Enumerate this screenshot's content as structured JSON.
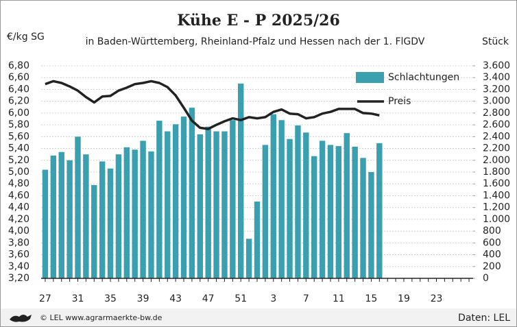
{
  "chart_data": {
    "type": "bar_line",
    "title": "Kühe E - P 2025/26",
    "subtitle": "in Baden-Württemberg, Rheinland-Pfalz und Hessen nach der 1. FlGDV",
    "y_label": "€/kg SG",
    "y2_label": "Stück",
    "source": "© LEL www.agrarmaerkte-bw.de",
    "data_credit": "Daten: LEL",
    "categories": [
      "27",
      null,
      null,
      null,
      "31",
      null,
      null,
      null,
      "35",
      null,
      null,
      null,
      "39",
      null,
      null,
      null,
      "43",
      null,
      null,
      null,
      "47",
      null,
      null,
      null,
      "51",
      null,
      null,
      null,
      "3",
      null,
      null,
      null,
      "7",
      null,
      null,
      null,
      "11",
      null,
      null,
      null,
      "15",
      null,
      null,
      null,
      "19",
      null,
      null,
      null,
      "23",
      null,
      null,
      null,
      null
    ],
    "series": [
      {
        "name": "Schlachtungen",
        "color": "#3a9fae",
        "axis": "y2",
        "kind": "bar",
        "values": [
          1840,
          2080,
          2140,
          2000,
          2400,
          2100,
          1580,
          1980,
          1860,
          2100,
          2220,
          2180,
          2330,
          2150,
          2670,
          2490,
          2610,
          2740,
          2890,
          2440,
          2570,
          2490,
          2490,
          2680,
          3300,
          670,
          1300,
          2260,
          2780,
          2680,
          2360,
          2590,
          2470,
          2070,
          2330,
          2260,
          2240,
          2460,
          2230,
          2040,
          1800,
          2290,
          null,
          null,
          null,
          null,
          null,
          null,
          null,
          null,
          null,
          null,
          null
        ]
      },
      {
        "name": "Preis",
        "color": "#222222",
        "axis": "y",
        "kind": "line",
        "values": [
          6.49,
          6.54,
          6.51,
          6.45,
          6.38,
          6.27,
          6.18,
          6.28,
          6.29,
          6.38,
          6.43,
          6.49,
          6.51,
          6.54,
          6.51,
          6.44,
          6.3,
          6.09,
          5.87,
          5.75,
          5.73,
          5.8,
          5.86,
          5.91,
          5.88,
          5.93,
          5.91,
          5.93,
          6.02,
          6.06,
          5.99,
          5.98,
          5.91,
          5.93,
          5.99,
          6.02,
          6.07,
          6.07,
          6.07,
          6.0,
          5.99,
          5.96,
          null,
          null,
          null,
          null,
          null,
          null,
          null,
          null,
          null,
          null,
          null
        ]
      }
    ],
    "ylim": [
      3.2,
      6.8
    ],
    "yticks": [
      {
        "value": 3.2,
        "label": "3,20"
      },
      {
        "value": 3.4,
        "label": "3,40"
      },
      {
        "value": 3.6,
        "label": "3,60"
      },
      {
        "value": 3.8,
        "label": "3,80"
      },
      {
        "value": 4.0,
        "label": "4,00"
      },
      {
        "value": 4.2,
        "label": "4,20"
      },
      {
        "value": 4.4,
        "label": "4,40"
      },
      {
        "value": 4.6,
        "label": "4,60"
      },
      {
        "value": 4.8,
        "label": "4,80"
      },
      {
        "value": 5.0,
        "label": "5,00"
      },
      {
        "value": 5.2,
        "label": "5,20"
      },
      {
        "value": 5.4,
        "label": "5,40"
      },
      {
        "value": 5.6,
        "label": "5,60"
      },
      {
        "value": 5.8,
        "label": "5,80"
      },
      {
        "value": 6.0,
        "label": "6,00"
      },
      {
        "value": 6.2,
        "label": "6,20"
      },
      {
        "value": 6.4,
        "label": "6,40"
      },
      {
        "value": 6.6,
        "label": "6,60"
      },
      {
        "value": 6.8,
        "label": "6,80"
      }
    ],
    "y2lim": [
      0,
      3600
    ],
    "y2ticks": [
      0,
      200,
      400,
      600,
      800,
      {
        "value": 1000,
        "label": "1.000"
      },
      {
        "value": 1200,
        "label": "1.200"
      },
      {
        "value": 1400,
        "label": "1.400"
      },
      {
        "value": 1600,
        "label": "1.600"
      },
      {
        "value": 1800,
        "label": "1.800"
      },
      {
        "value": 2000,
        "label": "2.000"
      },
      {
        "value": 2200,
        "label": "2.200"
      },
      {
        "value": 2400,
        "label": "2.400"
      },
      {
        "value": 2600,
        "label": "2.600"
      },
      {
        "value": 2800,
        "label": "2.800"
      },
      {
        "value": 3000,
        "label": "3.000"
      },
      {
        "value": 3200,
        "label": "3.200"
      },
      {
        "value": 3400,
        "label": "3.400"
      },
      {
        "value": 3600,
        "label": "3.600"
      }
    ],
    "grid": true,
    "legend": "upper right"
  }
}
